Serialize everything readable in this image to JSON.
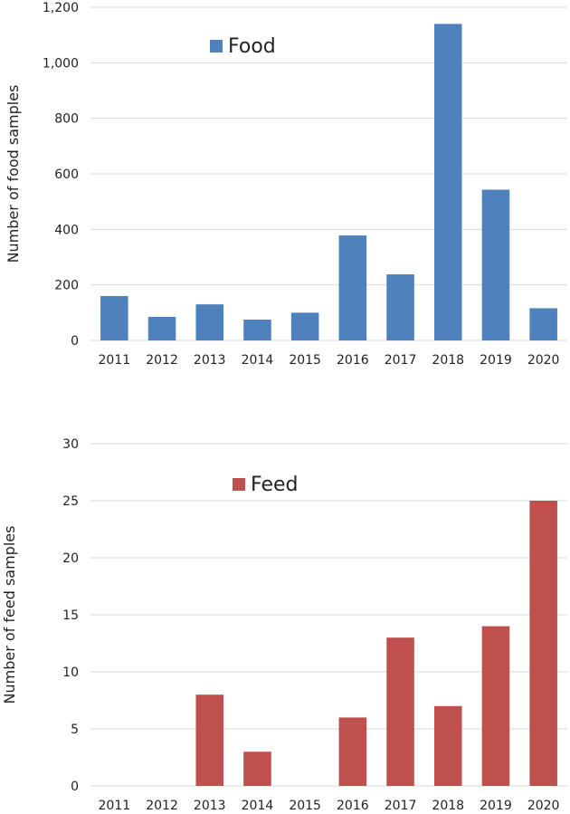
{
  "chart_data": [
    {
      "type": "bar",
      "ylabel": "Number of food samples",
      "legend": {
        "label": "Food",
        "placement": "top-left"
      },
      "categories": [
        "2011",
        "2012",
        "2013",
        "2014",
        "2015",
        "2016",
        "2017",
        "2018",
        "2019",
        "2020"
      ],
      "values": [
        160,
        85,
        130,
        75,
        100,
        378,
        238,
        1140,
        543,
        116
      ],
      "ylim": [
        0,
        1200
      ],
      "yticks": [
        0,
        200,
        400,
        600,
        800,
        1000,
        1200
      ],
      "ytick_labels": [
        "0",
        "200",
        "400",
        "600",
        "800",
        "1,000",
        "1,200"
      ],
      "color": "#4f81bd",
      "grid": true
    },
    {
      "type": "bar",
      "ylabel": "Number of feed samples",
      "legend": {
        "label": "Feed",
        "placement": "top-left"
      },
      "categories": [
        "2011",
        "2012",
        "2013",
        "2014",
        "2015",
        "2016",
        "2017",
        "2018",
        "2019",
        "2020"
      ],
      "values": [
        0,
        0,
        8,
        3,
        0,
        6,
        13,
        7,
        14,
        25
      ],
      "ylim": [
        0,
        30
      ],
      "yticks": [
        0,
        5,
        10,
        15,
        20,
        25,
        30
      ],
      "ytick_labels": [
        "0",
        "5",
        "10",
        "15",
        "20",
        "25",
        "30"
      ],
      "color": "#c0504d",
      "grid": true
    }
  ]
}
